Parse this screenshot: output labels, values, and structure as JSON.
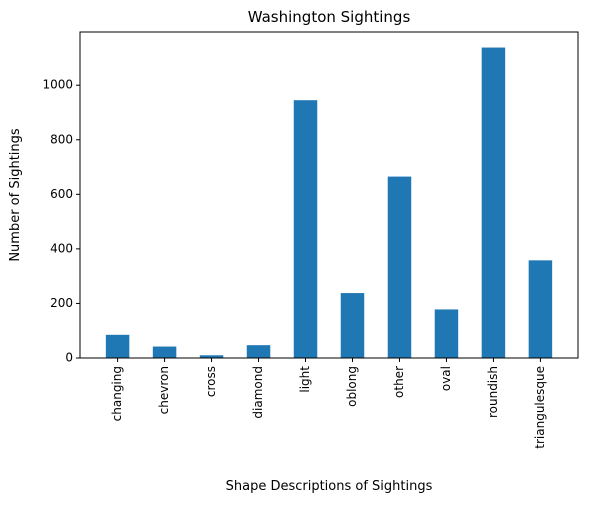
{
  "chart_data": {
    "type": "bar",
    "title": "Washington Sightings",
    "xlabel": "Shape Descriptions of Sightings",
    "ylabel": "Number of Sightings",
    "categories": [
      "changing",
      "chevron",
      "cross",
      "diamond",
      "light",
      "oblong",
      "other",
      "oval",
      "roundish",
      "triangulesque"
    ],
    "values": [
      85,
      42,
      10,
      47,
      945,
      238,
      665,
      178,
      1138,
      358
    ],
    "ylim": [
      0,
      1195
    ],
    "yticks": [
      0,
      200,
      400,
      600,
      800,
      1000
    ],
    "grid": false,
    "legend": "none",
    "bar_color": "#1f77b4"
  }
}
